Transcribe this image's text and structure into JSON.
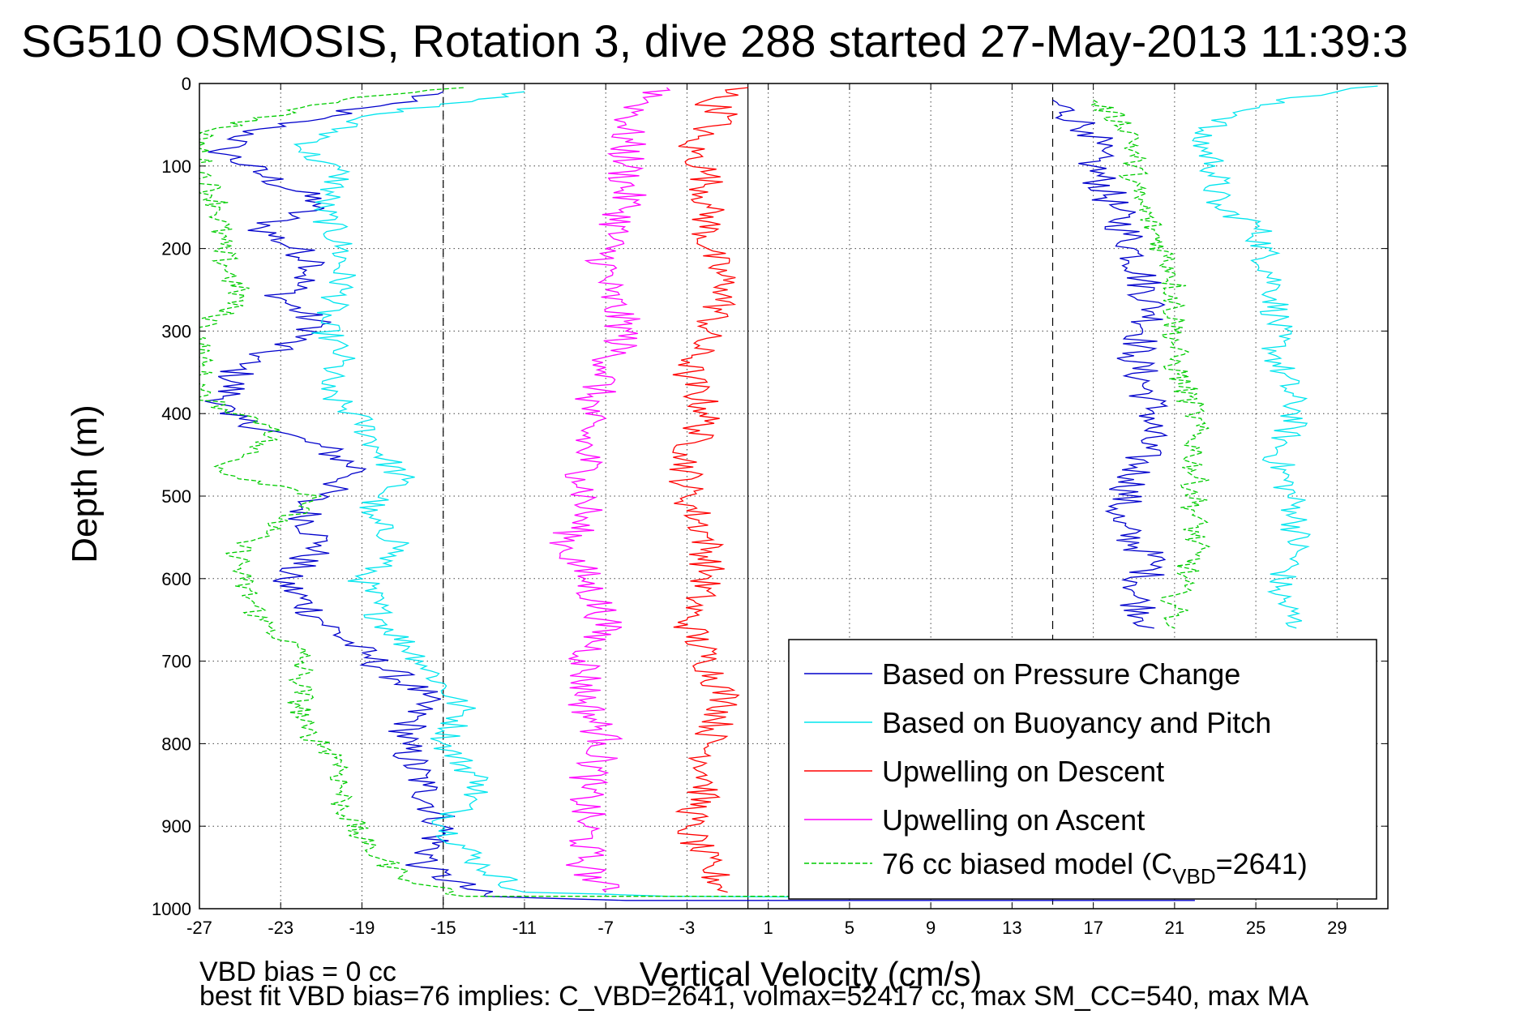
{
  "chart_data": {
    "type": "line",
    "title": "SG510 OSMOSIS, Rotation 3, dive 288 started 27-May-2013 11:39:3",
    "xlabel": "Vertical Velocity (cm/s)",
    "ylabel": "Depth (m)",
    "xlim": [
      -27,
      31.5
    ],
    "ylim": [
      1000,
      0
    ],
    "y_inverted": true,
    "grid": true,
    "xticks": [
      -27,
      -23,
      -19,
      -15,
      -11,
      -7,
      -3,
      1,
      5,
      9,
      13,
      17,
      21,
      25,
      29
    ],
    "yticks": [
      0,
      100,
      200,
      300,
      400,
      500,
      600,
      700,
      800,
      900,
      1000
    ],
    "reference_lines": {
      "dashed_x": [
        -15,
        15
      ],
      "solid_x": [
        0
      ]
    },
    "legend_position": "bottom-right",
    "legend": [
      {
        "label": "Based on Pressure Change",
        "color": "#0000cc",
        "dash": "solid"
      },
      {
        "label": "Based on Buoyancy and Pitch",
        "color": "#00e5ee",
        "dash": "solid"
      },
      {
        "label": "Upwelling on Descent",
        "color": "#ff0000",
        "dash": "solid"
      },
      {
        "label": "Upwelling on Ascent",
        "color": "#ff00ff",
        "dash": "solid"
      },
      {
        "label_prefix": "76 cc biased model (C",
        "label_sub": "VBD",
        "label_suffix": "=2641)",
        "color": "#00cc00",
        "dash": "dashed"
      }
    ],
    "series": [
      {
        "name": "Based on Pressure Change",
        "color": "#0000cc",
        "jitter": 1.0,
        "points": [
          [
            -15,
            10
          ],
          [
            -19,
            30
          ],
          [
            -24,
            55
          ],
          [
            -26,
            80
          ],
          [
            -24,
            110
          ],
          [
            -21,
            145
          ],
          [
            -24,
            175
          ],
          [
            -21,
            220
          ],
          [
            -23,
            260
          ],
          [
            -21,
            295
          ],
          [
            -25,
            340
          ],
          [
            -26,
            400
          ],
          [
            -21,
            440
          ],
          [
            -19,
            470
          ],
          [
            -22,
            510
          ],
          [
            -21,
            560
          ],
          [
            -23,
            600
          ],
          [
            -21,
            650
          ],
          [
            -19,
            690
          ],
          [
            -16,
            740
          ],
          [
            -17,
            800
          ],
          [
            -16,
            850
          ],
          [
            -15,
            900
          ],
          [
            -16,
            950
          ],
          [
            -13,
            985
          ],
          [
            -6,
            990
          ],
          [
            22,
            990
          ],
          [
            15,
            20
          ],
          [
            17,
            60
          ],
          [
            17,
            100
          ],
          [
            18,
            150
          ],
          [
            19,
            200
          ],
          [
            20,
            280
          ],
          [
            19,
            330
          ],
          [
            20,
            400
          ],
          [
            19,
            480
          ],
          [
            18,
            530
          ],
          [
            20,
            580
          ],
          [
            19,
            620
          ],
          [
            20,
            660
          ]
        ]
      },
      {
        "name": "Based on Buoyancy and Pitch",
        "color": "#00e5ee",
        "jitter": 0.8,
        "points": [
          [
            -11,
            10
          ],
          [
            -19,
            40
          ],
          [
            -22,
            80
          ],
          [
            -20,
            110
          ],
          [
            -21,
            150
          ],
          [
            -20,
            200
          ],
          [
            -20,
            250
          ],
          [
            -21,
            290
          ],
          [
            -20,
            330
          ],
          [
            -21,
            370
          ],
          [
            -19,
            410
          ],
          [
            -18,
            450
          ],
          [
            -17,
            480
          ],
          [
            -19,
            520
          ],
          [
            -17,
            560
          ],
          [
            -19,
            600
          ],
          [
            -18,
            650
          ],
          [
            -16,
            700
          ],
          [
            -14,
            760
          ],
          [
            -15,
            800
          ],
          [
            -13,
            850
          ],
          [
            -15,
            900
          ],
          [
            -13,
            950
          ],
          [
            -11,
            980
          ],
          [
            -4,
            985
          ],
          [
            24,
            988
          ],
          [
            31,
            3
          ],
          [
            26,
            20
          ],
          [
            22,
            60
          ],
          [
            23,
            100
          ],
          [
            23,
            150
          ],
          [
            25,
            170
          ],
          [
            26,
            250
          ],
          [
            26,
            330
          ],
          [
            27,
            400
          ],
          [
            26,
            450
          ],
          [
            27,
            520
          ],
          [
            27,
            570
          ],
          [
            26,
            610
          ],
          [
            27,
            660
          ]
        ]
      },
      {
        "name": "Upwelling on Descent",
        "color": "#ff0000",
        "jitter": 0.9,
        "points": [
          [
            0,
            5
          ],
          [
            -2,
            20
          ],
          [
            -1,
            40
          ],
          [
            -3,
            70
          ],
          [
            -2,
            110
          ],
          [
            -2,
            150
          ],
          [
            -2,
            200
          ],
          [
            -1,
            250
          ],
          [
            -2,
            300
          ],
          [
            -3,
            350
          ],
          [
            -2,
            400
          ],
          [
            -3,
            450
          ],
          [
            -3,
            500
          ],
          [
            -2,
            550
          ],
          [
            -2,
            600
          ],
          [
            -3,
            650
          ],
          [
            -2,
            700
          ],
          [
            -1,
            750
          ],
          [
            -2,
            800
          ],
          [
            -2,
            850
          ],
          [
            -3,
            900
          ],
          [
            -2,
            950
          ],
          [
            -1,
            980
          ]
        ]
      },
      {
        "name": "Upwelling on Ascent",
        "color": "#ff00ff",
        "jitter": 1.0,
        "points": [
          [
            -4,
            5
          ],
          [
            -5,
            20
          ],
          [
            -6,
            50
          ],
          [
            -6,
            100
          ],
          [
            -6,
            150
          ],
          [
            -7,
            200
          ],
          [
            -7,
            250
          ],
          [
            -6,
            300
          ],
          [
            -7,
            350
          ],
          [
            -8,
            400
          ],
          [
            -8,
            450
          ],
          [
            -8,
            480
          ],
          [
            -8,
            520
          ],
          [
            -9,
            560
          ],
          [
            -8,
            600
          ],
          [
            -7,
            650
          ],
          [
            -8,
            700
          ],
          [
            -8,
            750
          ],
          [
            -7,
            800
          ],
          [
            -8,
            850
          ],
          [
            -8,
            900
          ],
          [
            -8,
            950
          ],
          [
            -7,
            980
          ]
        ]
      },
      {
        "name": "76 cc biased model (CVBD=2641)",
        "color": "#00cc00",
        "dash": true,
        "jitter": 0.7,
        "points": [
          [
            -14,
            5
          ],
          [
            -20,
            20
          ],
          [
            -27,
            60
          ],
          [
            -27,
            100
          ],
          [
            -26,
            150
          ],
          [
            -26,
            200
          ],
          [
            -25,
            260
          ],
          [
            -27,
            300
          ],
          [
            -27,
            380
          ],
          [
            -23,
            420
          ],
          [
            -26,
            470
          ],
          [
            -21,
            500
          ],
          [
            -25,
            560
          ],
          [
            -25,
            600
          ],
          [
            -24,
            650
          ],
          [
            -22,
            690
          ],
          [
            -22,
            720
          ],
          [
            -22,
            780
          ],
          [
            -20,
            820
          ],
          [
            -20,
            870
          ],
          [
            -19,
            920
          ],
          [
            -17,
            960
          ],
          [
            -14,
            985
          ],
          [
            -3,
            985
          ],
          [
            20,
            985
          ],
          [
            17,
            20
          ],
          [
            19,
            60
          ],
          [
            19,
            100
          ],
          [
            19,
            130
          ],
          [
            20,
            180
          ],
          [
            21,
            230
          ],
          [
            21,
            290
          ],
          [
            21,
            340
          ],
          [
            22,
            400
          ],
          [
            22,
            450
          ],
          [
            22,
            520
          ],
          [
            22,
            570
          ],
          [
            21,
            620
          ],
          [
            21,
            660
          ]
        ]
      }
    ]
  },
  "footnotes": {
    "line1": "VBD bias = 0 cc",
    "line2": "best fit VBD bias=76 implies: C_VBD=2641, volmax=52417 cc, max SM_CC=540, max MA"
  }
}
